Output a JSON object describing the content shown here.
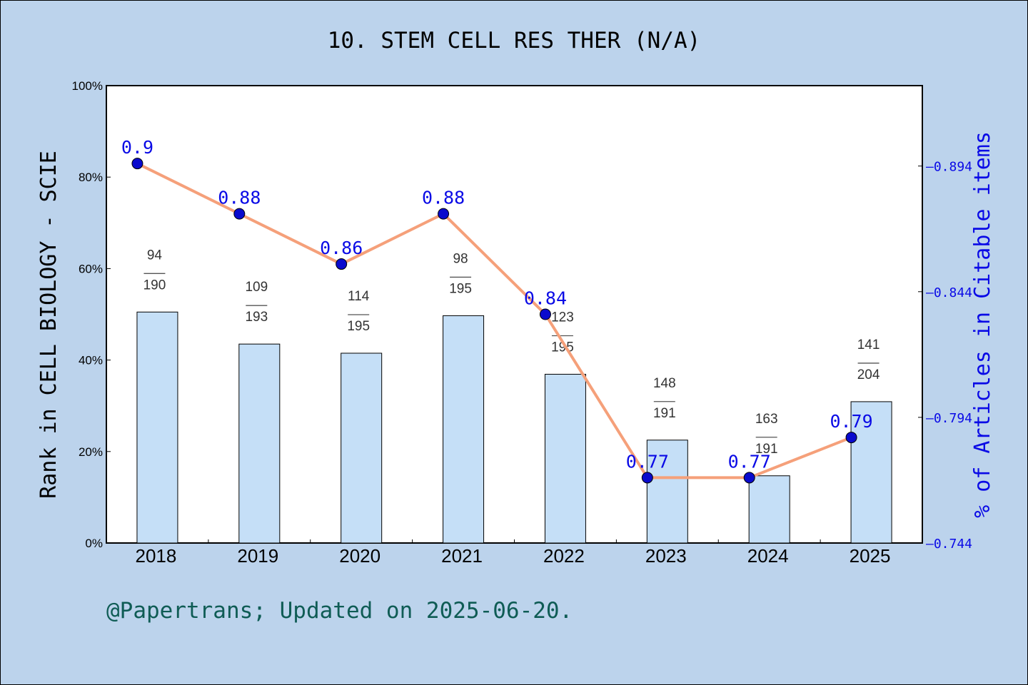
{
  "chart_data": {
    "type": "bar",
    "title": "10. STEM CELL RES THER (N/A)",
    "footer": "@Papertrans; Updated on 2025-06-20.",
    "categories": [
      "2018",
      "2019",
      "2020",
      "2021",
      "2022",
      "2023",
      "2024",
      "2025"
    ],
    "ylabel": "Rank in CELL BIOLOGY - SCIE",
    "ylim": [
      0,
      100
    ],
    "y_ticks": [
      "0%",
      "20%",
      "40%",
      "60%",
      "80%",
      "100%"
    ],
    "y2label": "% of Articles in Citable items",
    "y2lim": [
      0.744,
      0.926
    ],
    "y2_ticks": [
      "0.744",
      "0.794",
      "0.844",
      "0.894"
    ],
    "series": [
      {
        "kind": "bar",
        "values": [
          50.5,
          43.5,
          41.5,
          49.7,
          36.9,
          22.5,
          14.7,
          30.9
        ],
        "rank": [
          "94",
          "109",
          "114",
          "98",
          "123",
          "148",
          "163",
          "141"
        ],
        "total": [
          "190",
          "193",
          "195",
          "195",
          "195",
          "191",
          "191",
          "204"
        ],
        "color": "#c5dff7"
      },
      {
        "kind": "line",
        "axis": "right",
        "values": [
          0.895,
          0.875,
          0.855,
          0.875,
          0.835,
          0.77,
          0.77,
          0.786
        ],
        "labels": [
          "0.9",
          "0.88",
          "0.86",
          "0.88",
          "0.84",
          "0.77",
          "0.77",
          "0.79"
        ],
        "color": "#f5a07a",
        "marker_color": "#0a0acd"
      }
    ],
    "grid": false
  }
}
